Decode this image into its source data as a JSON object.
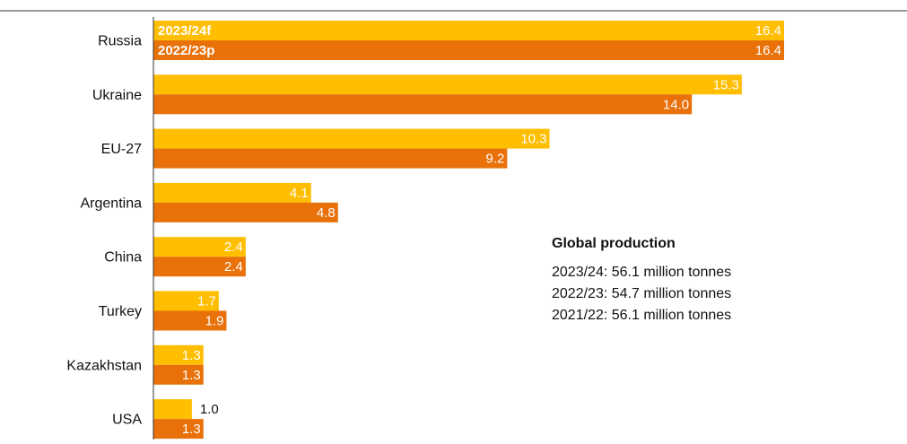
{
  "chart_data": {
    "type": "bar",
    "orientation": "horizontal",
    "categories": [
      "Russia",
      "Ukraine",
      "EU-27",
      "Argentina",
      "China",
      "Turkey",
      "Kazakhstan",
      "USA"
    ],
    "series": [
      {
        "name": "2023/24f",
        "values": [
          16.4,
          15.3,
          10.3,
          4.1,
          2.4,
          1.7,
          1.3,
          1.0
        ]
      },
      {
        "name": "2022/23p",
        "values": [
          16.4,
          14.0,
          9.2,
          4.8,
          2.4,
          1.9,
          1.3,
          1.3
        ]
      }
    ],
    "value_labels": [
      [
        "16.4",
        "15.3",
        "10.3",
        "4.1",
        "2.4",
        "1.7",
        "1.3",
        "1.0"
      ],
      [
        "16.4",
        "14.0",
        "9.2",
        "4.8",
        "2.4",
        "1.9",
        "1.3",
        "1.3"
      ]
    ],
    "legend_placement": "inside first bars",
    "xlim": [
      0,
      16.4
    ],
    "grid": false,
    "colors": {
      "series_1": "#FFBE00",
      "series_2": "#E8710A",
      "axis": "#333333",
      "label_inside": "#ffffff",
      "label_outside": "#111111"
    }
  },
  "annotation": {
    "title": "Global production",
    "lines": [
      "2023/24: 56.1 million tonnes",
      "2022/23: 54.7 million tonnes",
      "2021/22: 56.1 million tonnes"
    ]
  }
}
